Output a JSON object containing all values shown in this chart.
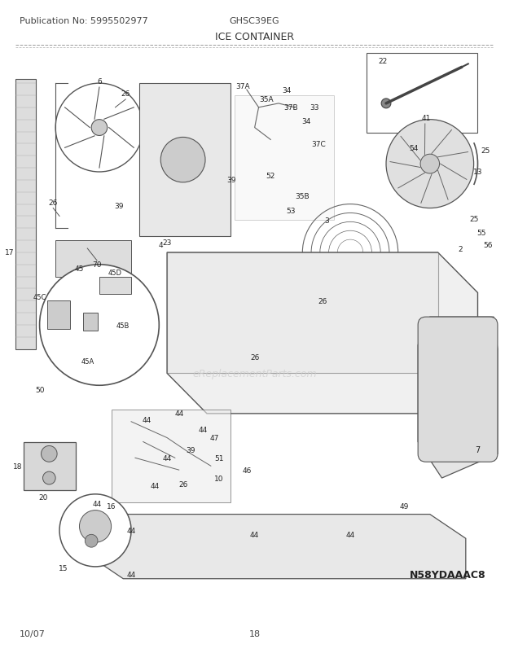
{
  "publication_no": "Publication No: 5995502977",
  "model": "GHSC39EG",
  "section_title": "ICE CONTAINER",
  "diagram_code": "N58YDAAAC8",
  "date": "10/07",
  "page": "18",
  "bg_color": "#ffffff",
  "header_fontsize": 8,
  "title_fontsize": 9,
  "footer_fontsize": 8,
  "fig_width": 6.2,
  "fig_height": 8.03,
  "dpi": 100
}
